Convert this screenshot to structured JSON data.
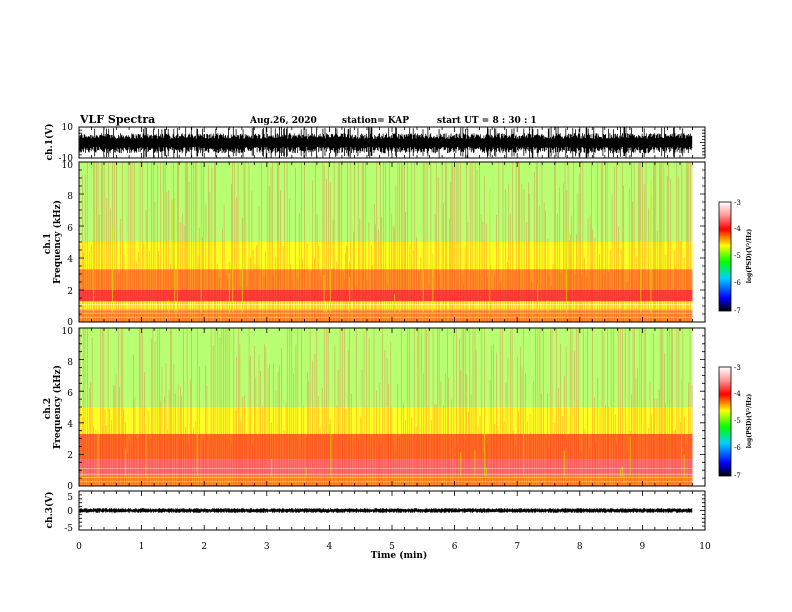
{
  "header": {
    "title": "VLF Spectra",
    "date": "Aug.26, 2020",
    "station": "station= KAP",
    "start": "start UT =  8 : 30 : 1"
  },
  "chart_data": [
    {
      "type": "line",
      "name": "ch1-waveform",
      "ylabel": "ch.1(V)",
      "ylim": [
        -10,
        10
      ],
      "yticks": [
        "10",
        "-10"
      ],
      "xlim": [
        0,
        10
      ],
      "x_end": 9.8,
      "envelope": {
        "typical_low": -7,
        "typical_high": 6,
        "peak_low": -10,
        "peak_high": 10
      }
    },
    {
      "type": "heatmap",
      "name": "ch1-spectrogram",
      "ylabel": "ch.1\nFrequency (kHz)",
      "ylim": [
        0,
        10
      ],
      "yticks": [
        "0",
        "2",
        "4",
        "6",
        "8",
        "10"
      ],
      "xlim": [
        0,
        10
      ],
      "x_end": 9.8,
      "colorbar": {
        "label": "log(PSD)(V²/Hz)",
        "range": [
          -7,
          -3
        ],
        "ticks": [
          "-3",
          "-4",
          "-5",
          "-6",
          "-7"
        ]
      },
      "bands_khz": [
        {
          "from": 0.0,
          "to": 0.8,
          "level": -4.3
        },
        {
          "from": 0.8,
          "to": 1.3,
          "level": -4.6
        },
        {
          "from": 1.3,
          "to": 2.0,
          "level": -3.9
        },
        {
          "from": 2.0,
          "to": 3.3,
          "level": -4.3
        },
        {
          "from": 3.3,
          "to": 5.0,
          "level": -4.6
        },
        {
          "from": 5.0,
          "to": 10.0,
          "level": -4.9
        }
      ]
    },
    {
      "type": "heatmap",
      "name": "ch2-spectrogram",
      "ylabel": "ch.2\nFrequency (kHz)",
      "ylim": [
        0,
        10
      ],
      "yticks": [
        "0",
        "2",
        "4",
        "6",
        "8",
        "10"
      ],
      "xlim": [
        0,
        10
      ],
      "x_end": 9.8,
      "colorbar": {
        "label": "log(PSD)(V²/Hz)",
        "range": [
          -7,
          -3
        ],
        "ticks": [
          "-3",
          "-4",
          "-5",
          "-6",
          "-7"
        ]
      },
      "bands_khz": [
        {
          "from": 0.0,
          "to": 0.7,
          "level": -4.3
        },
        {
          "from": 0.7,
          "to": 1.7,
          "level": -3.7
        },
        {
          "from": 1.7,
          "to": 3.3,
          "level": -4.2
        },
        {
          "from": 3.3,
          "to": 5.0,
          "level": -4.6
        },
        {
          "from": 5.0,
          "to": 10.0,
          "level": -4.9
        }
      ]
    },
    {
      "type": "line",
      "name": "ch3-waveform",
      "ylabel": "ch.3(V)",
      "ylim": [
        -5,
        5
      ],
      "yticks": [
        "5",
        "0",
        "-5"
      ],
      "xlim": [
        0,
        10
      ],
      "x_end": 9.8,
      "xlabel": "Time (min)",
      "xticks": [
        "0",
        "1",
        "2",
        "3",
        "4",
        "5",
        "6",
        "7",
        "8",
        "9",
        "10"
      ],
      "envelope": {
        "typical_low": -0.6,
        "typical_high": 0.6
      }
    }
  ]
}
